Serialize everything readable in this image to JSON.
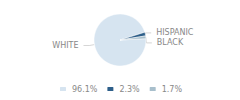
{
  "chart_data": {
    "type": "pie",
    "categories": [
      "WHITE",
      "HISPANIC",
      "BLACK"
    ],
    "values": [
      96.1,
      2.3,
      1.7
    ],
    "value_labels": [
      "96.1%",
      "2.3%",
      "1.7%"
    ],
    "colors": [
      "#d6e4f0",
      "#2e5f8a",
      "#a8bfcc"
    ],
    "legend": "bottom"
  }
}
